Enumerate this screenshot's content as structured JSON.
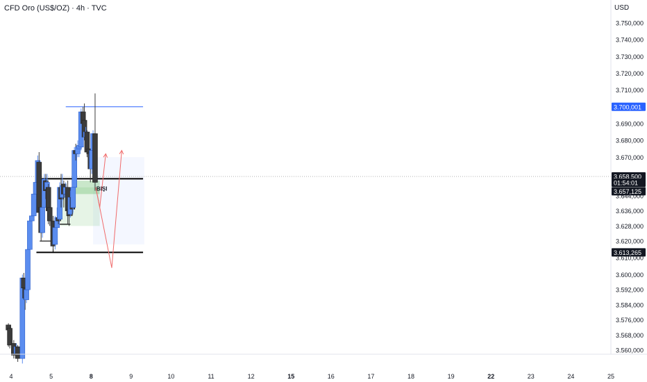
{
  "header": {
    "title": "CFD Oro (US$/OZ) · 4h · TVC",
    "currency": "USD"
  },
  "chart_data": {
    "type": "candlestick",
    "xlabels": [
      {
        "label": "4",
        "x": 0
      },
      {
        "label": "5",
        "x": 1
      },
      {
        "label": "8",
        "x": 2,
        "bold": true
      },
      {
        "label": "9",
        "x": 3
      },
      {
        "label": "10",
        "x": 4
      },
      {
        "label": "11",
        "x": 5
      },
      {
        "label": "12",
        "x": 6
      },
      {
        "label": "15",
        "x": 7,
        "bold": true
      },
      {
        "label": "16",
        "x": 8
      },
      {
        "label": "17",
        "x": 9
      },
      {
        "label": "18",
        "x": 10
      },
      {
        "label": "19",
        "x": 11
      },
      {
        "label": "22",
        "x": 12,
        "bold": true
      },
      {
        "label": "23",
        "x": 13
      },
      {
        "label": "24",
        "x": 14
      },
      {
        "label": "25",
        "x": 15
      }
    ],
    "yticks": [
      "3.750,000",
      "3.740,000",
      "3.730,000",
      "3.720,000",
      "3.710,000",
      "3.690,000",
      "3.680,000",
      "3.670,000",
      "3.644,000",
      "3.636,000",
      "3.628,000",
      "3.620,000",
      "3.610,000",
      "3.600,000",
      "3.592,000",
      "3.584,000",
      "3.576,000",
      "3.568,000",
      "3.560,000"
    ],
    "price_labels": [
      {
        "text": "3.700,001",
        "y": 3700.001,
        "color": "#2962ff"
      },
      {
        "text": "3.658,500",
        "y": 3658.5,
        "color": "#131722"
      },
      {
        "text": "01:54:01",
        "y": 3658.5,
        "color": "#131722",
        "offset": 1
      },
      {
        "text": "3.657,125",
        "y": 3657.125,
        "color": "#131722",
        "offset": 2
      },
      {
        "text": "3.613,265",
        "y": 3613.265,
        "color": "#131722"
      }
    ],
    "candles": [
      [
        -0.067,
        3570,
        3567,
        3571,
        3557
      ],
      [
        -0.033,
        3568,
        3558,
        3569,
        3556
      ],
      [
        0.067,
        3559,
        3552,
        3561,
        3550
      ],
      [
        0.133,
        3553,
        3557,
        3559,
        3551
      ],
      [
        0.167,
        3557,
        3550,
        3558,
        3548
      ],
      [
        0.283,
        3550,
        3598,
        3600,
        3547
      ],
      [
        0.317,
        3598,
        3592,
        3601,
        3585
      ],
      [
        0.35,
        3592,
        3586,
        3595,
        3579
      ],
      [
        0.383,
        3585,
        3591,
        3594,
        3583
      ],
      [
        0.417,
        3591,
        3615,
        3616,
        3589
      ],
      [
        0.467,
        3615,
        3632,
        3634,
        3614
      ],
      [
        0.517,
        3632,
        3635,
        3640,
        3630
      ],
      [
        0.567,
        3635,
        3648,
        3650,
        3633
      ],
      [
        0.617,
        3648,
        3655,
        3660,
        3645
      ],
      [
        0.667,
        3655,
        3668,
        3671,
        3653
      ],
      [
        0.7,
        3667,
        3637,
        3673,
        3630
      ],
      [
        0.75,
        3640,
        3625,
        3642,
        3620
      ],
      [
        0.783,
        3625,
        3640,
        3648,
        3622
      ],
      [
        0.833,
        3640,
        3657,
        3660,
        3638
      ],
      [
        0.867,
        3656,
        3650,
        3660,
        3645
      ],
      [
        0.9,
        3651,
        3655,
        3660,
        3645
      ],
      [
        0.933,
        3652,
        3638,
        3654,
        3630
      ],
      [
        0.967,
        3640,
        3632,
        3648,
        3629
      ],
      [
        1.05,
        3632,
        3617,
        3635,
        3615
      ],
      [
        1.1,
        3618,
        3628,
        3635,
        3615
      ],
      [
        1.15,
        3628,
        3634,
        3640,
        3620
      ],
      [
        1.183,
        3634,
        3632,
        3638,
        3630
      ],
      [
        1.217,
        3633,
        3652,
        3655,
        3632
      ],
      [
        1.25,
        3652,
        3645,
        3660,
        3640
      ],
      [
        1.283,
        3646,
        3653,
        3660,
        3644
      ],
      [
        1.317,
        3654,
        3648,
        3656,
        3640
      ],
      [
        1.367,
        3648,
        3652,
        3655,
        3645
      ],
      [
        1.417,
        3652,
        3638,
        3656,
        3630
      ],
      [
        1.45,
        3639,
        3635,
        3648,
        3629
      ],
      [
        1.483,
        3636,
        3646,
        3650,
        3634
      ],
      [
        1.533,
        3646,
        3639,
        3650,
        3635
      ],
      [
        1.55,
        3640,
        3652,
        3655,
        3637
      ],
      [
        1.583,
        3652,
        3674,
        3676,
        3650
      ],
      [
        1.617,
        3674,
        3672,
        3678,
        3668
      ],
      [
        1.667,
        3672,
        3676,
        3680,
        3670
      ],
      [
        1.7,
        3675,
        3677,
        3682,
        3670
      ],
      [
        1.75,
        3676,
        3697,
        3699,
        3674
      ],
      [
        1.8,
        3697,
        3690,
        3700,
        3685
      ],
      [
        1.833,
        3692,
        3682,
        3702,
        3680
      ],
      [
        1.867,
        3682,
        3685,
        3688,
        3679
      ],
      [
        1.9,
        3685,
        3673,
        3686,
        3670
      ],
      [
        1.95,
        3675,
        3672,
        3678,
        3665
      ],
      [
        1.983,
        3673,
        3663,
        3675,
        3655
      ],
      [
        2.017,
        3663,
        3674,
        3676,
        3660
      ],
      [
        2.05,
        3674,
        3684,
        3686,
        3670
      ],
      [
        2.1,
        3684,
        3655,
        3708,
        3650
      ]
    ],
    "annotations": {
      "label": "BIŞI",
      "hlines": [
        {
          "x1": 0.667,
          "x2": 3.3,
          "y": 3657.125,
          "color": "#000000",
          "w": 2
        },
        {
          "x1": 0.633,
          "x2": 3.3,
          "y": 3613.265,
          "color": "#000000",
          "w": 2
        },
        {
          "x1": 1.367,
          "x2": 3.3,
          "y": 3700.001,
          "color": "#2962ff",
          "w": 1
        },
        {
          "x1": 0.717,
          "x2": 1.033,
          "y": 3620,
          "color": "#000000",
          "w": 1.2
        },
        {
          "x1": 1.183,
          "x2": 1.483,
          "y": 3630,
          "color": "#000000",
          "w": 1.2
        }
      ]
    },
    "ylim": [
      3552,
      3760
    ]
  }
}
